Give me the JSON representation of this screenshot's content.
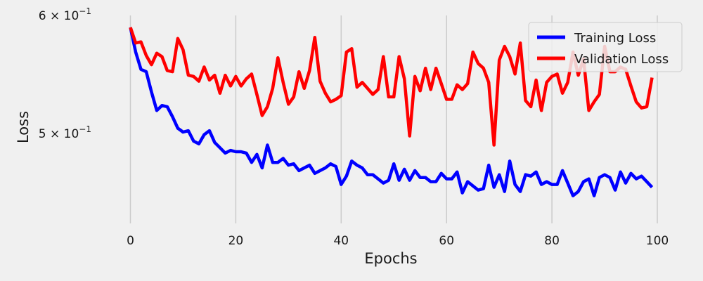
{
  "chart_data": {
    "type": "line",
    "title": "",
    "xlabel": "Epochs",
    "ylabel": "Loss",
    "yscale": "log",
    "xlim": [
      -5,
      104
    ],
    "ylim": [
      0.435,
      0.6
    ],
    "grid": "vertical",
    "legend": "top-right",
    "x_ticks": [
      0,
      20,
      40,
      60,
      80,
      100
    ],
    "x_tick_labels": [
      "0",
      "20",
      "40",
      "60",
      "80",
      "100"
    ],
    "y_ticks": [
      0.5,
      0.6
    ],
    "y_tick_labels": [
      {
        "mantissa": "5",
        "times": "×",
        "base": "10",
        "exp": "−1"
      },
      {
        "mantissa": "6",
        "times": "×",
        "base": "10",
        "exp": "−1"
      }
    ],
    "series": [
      {
        "name": "Training Loss",
        "color": "#0000ff",
        "values": [
          0.589,
          0.567,
          0.552,
          0.55,
          0.533,
          0.518,
          0.522,
          0.521,
          0.513,
          0.504,
          0.501,
          0.502,
          0.494,
          0.492,
          0.499,
          0.502,
          0.493,
          0.489,
          0.485,
          0.487,
          0.486,
          0.486,
          0.485,
          0.478,
          0.484,
          0.474,
          0.491,
          0.478,
          0.478,
          0.481,
          0.476,
          0.477,
          0.472,
          0.474,
          0.476,
          0.47,
          0.472,
          0.474,
          0.477,
          0.475,
          0.462,
          0.468,
          0.479,
          0.476,
          0.474,
          0.469,
          0.469,
          0.466,
          0.463,
          0.465,
          0.477,
          0.465,
          0.473,
          0.465,
          0.472,
          0.467,
          0.467,
          0.464,
          0.464,
          0.47,
          0.466,
          0.466,
          0.471,
          0.456,
          0.464,
          0.461,
          0.458,
          0.459,
          0.476,
          0.46,
          0.469,
          0.457,
          0.479,
          0.462,
          0.457,
          0.469,
          0.468,
          0.471,
          0.462,
          0.464,
          0.462,
          0.462,
          0.472,
          0.463,
          0.454,
          0.457,
          0.464,
          0.466,
          0.454,
          0.467,
          0.469,
          0.467,
          0.458,
          0.471,
          0.463,
          0.47,
          0.466,
          0.468,
          0.464,
          0.46
        ]
      },
      {
        "name": "Validation Loss",
        "color": "#ff0000",
        "values": [
          0.589,
          0.575,
          0.576,
          0.564,
          0.556,
          0.566,
          0.563,
          0.551,
          0.55,
          0.579,
          0.569,
          0.547,
          0.546,
          0.542,
          0.554,
          0.543,
          0.547,
          0.532,
          0.547,
          0.538,
          0.546,
          0.538,
          0.544,
          0.548,
          0.531,
          0.514,
          0.521,
          0.536,
          0.562,
          0.541,
          0.523,
          0.529,
          0.55,
          0.536,
          0.551,
          0.58,
          0.542,
          0.532,
          0.525,
          0.527,
          0.53,
          0.567,
          0.57,
          0.537,
          0.541,
          0.536,
          0.531,
          0.535,
          0.563,
          0.529,
          0.529,
          0.563,
          0.544,
          0.498,
          0.546,
          0.534,
          0.553,
          0.535,
          0.553,
          0.54,
          0.527,
          0.527,
          0.539,
          0.535,
          0.54,
          0.567,
          0.557,
          0.553,
          0.541,
          0.491,
          0.56,
          0.572,
          0.563,
          0.548,
          0.575,
          0.526,
          0.521,
          0.543,
          0.518,
          0.541,
          0.546,
          0.548,
          0.532,
          0.541,
          0.567,
          0.547,
          0.561,
          0.518,
          0.525,
          0.531,
          0.572,
          0.55,
          0.55,
          0.554,
          0.552,
          0.538,
          0.525,
          0.52,
          0.521,
          0.545
        ]
      }
    ]
  }
}
